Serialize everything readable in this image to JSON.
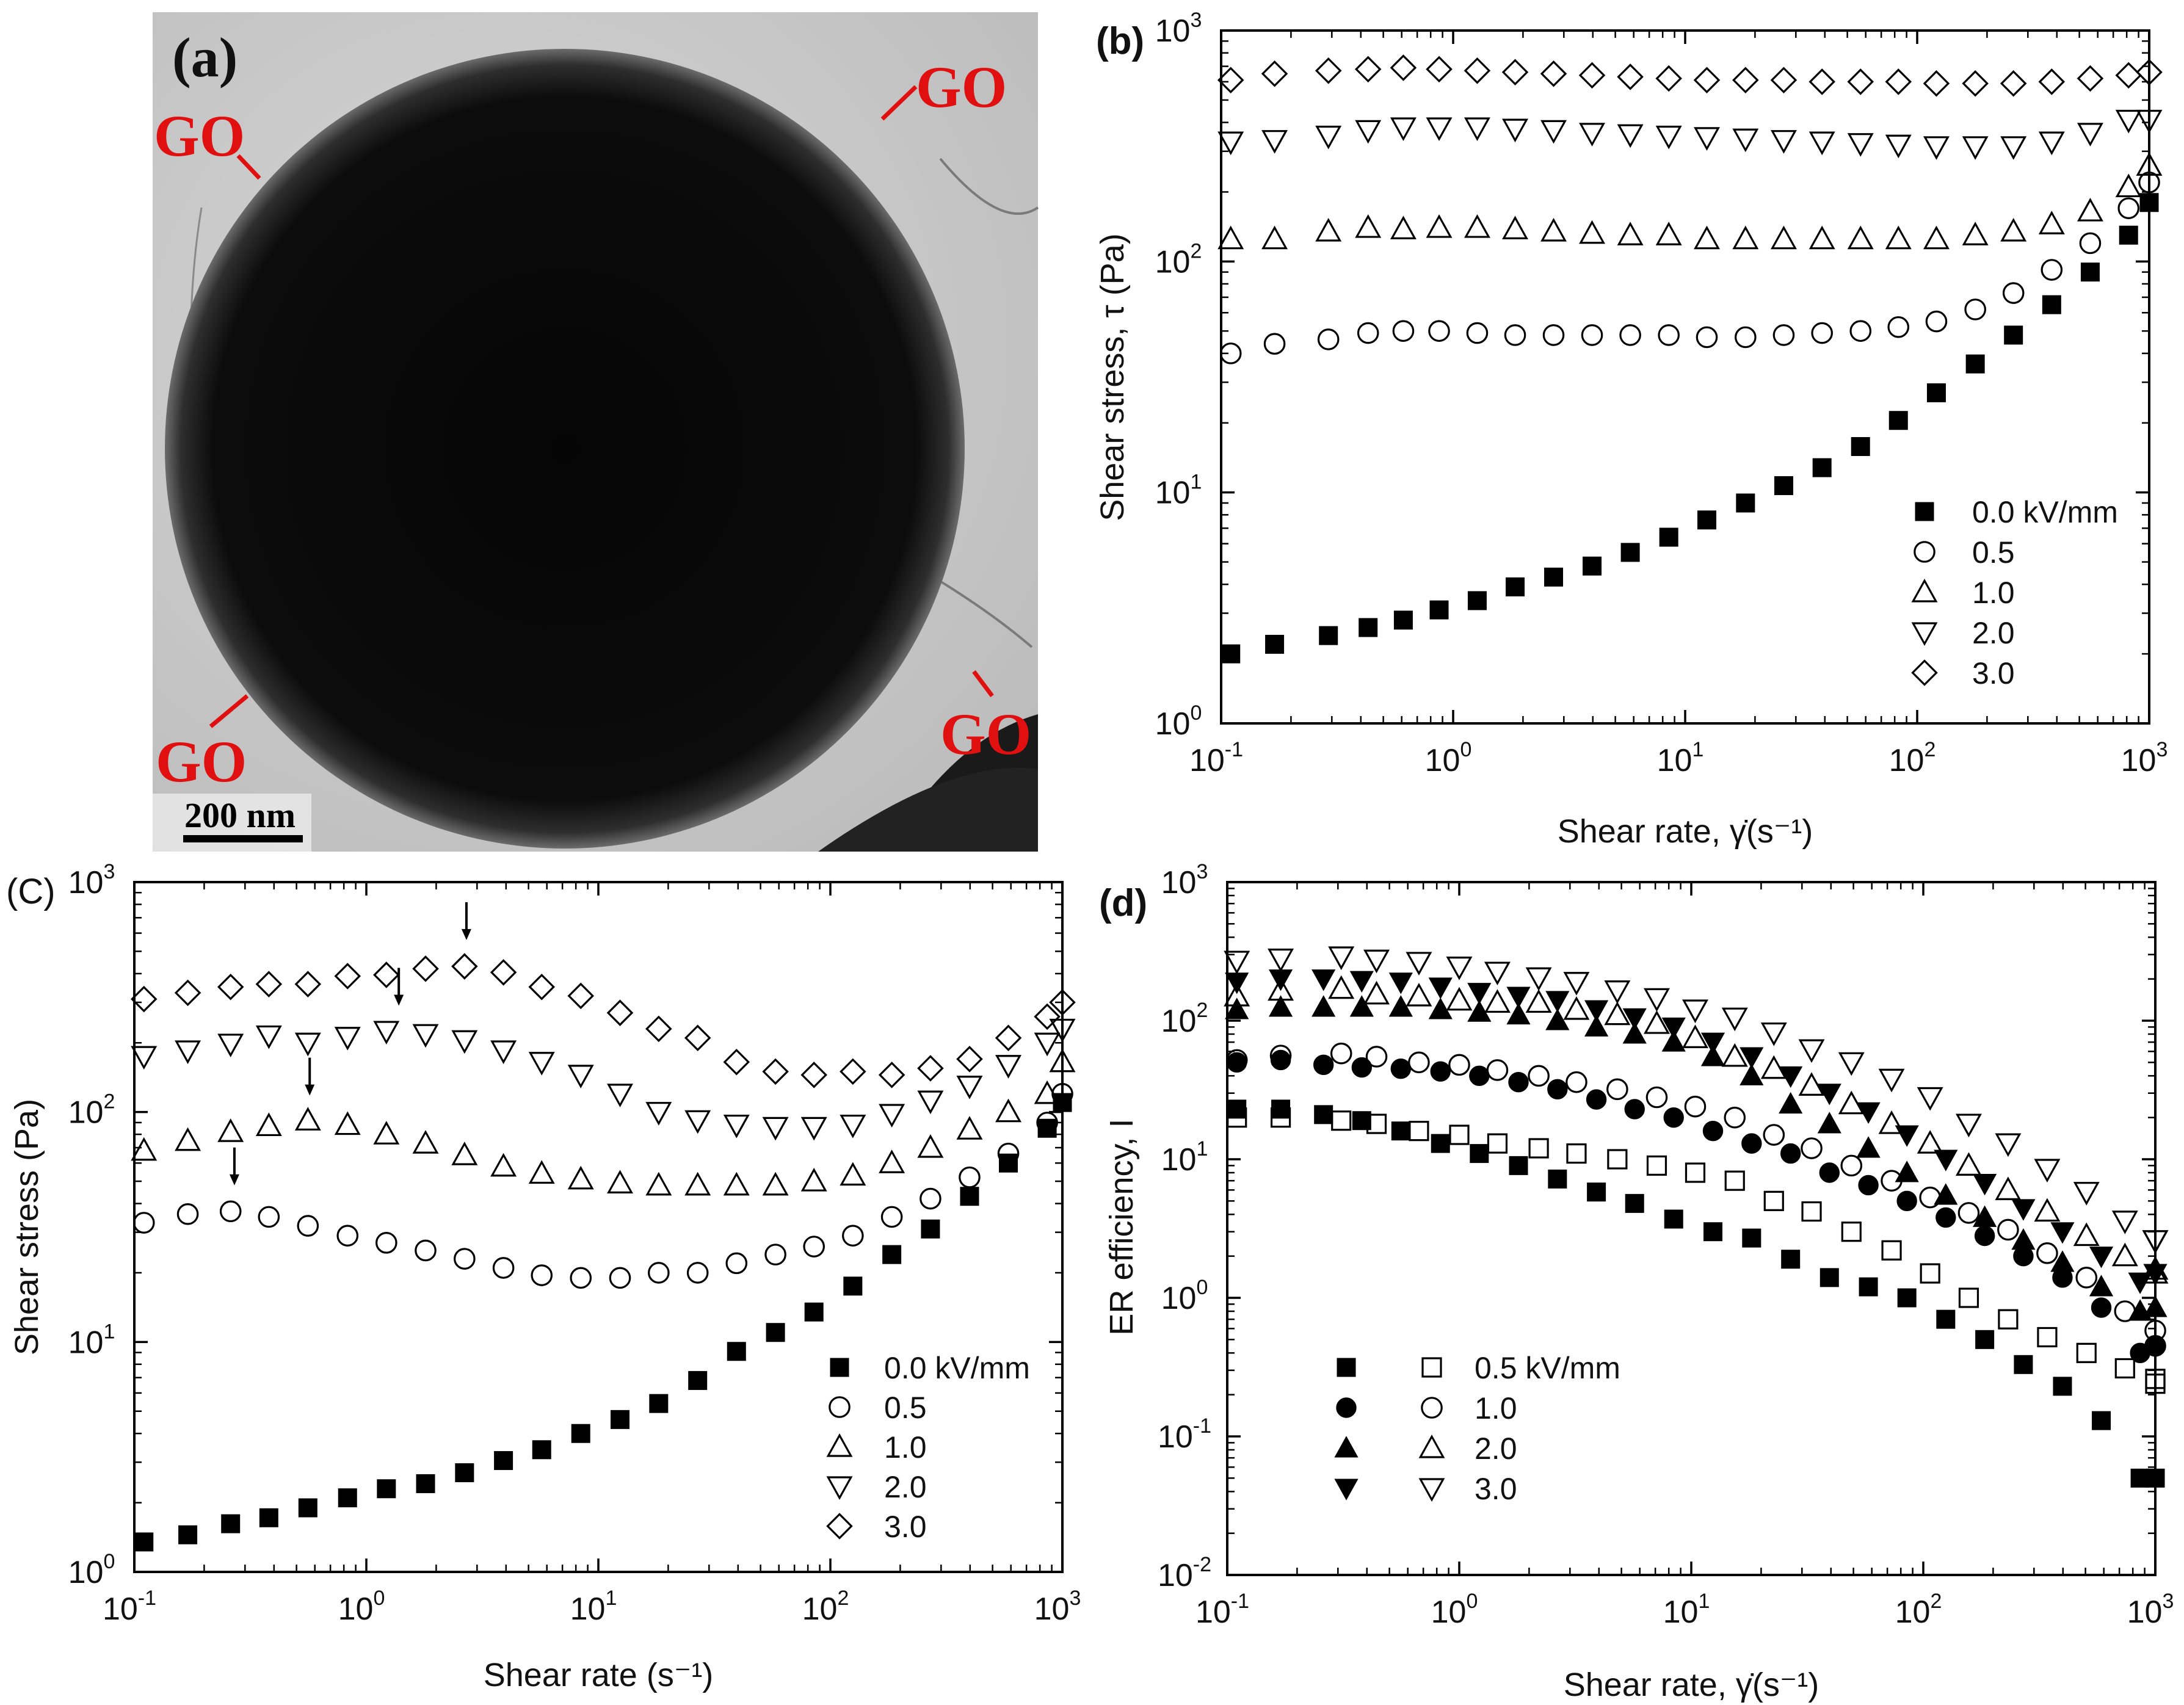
{
  "panel_a": {
    "label": "(a)",
    "annotations": [
      "GO",
      "GO",
      "GO",
      "GO"
    ],
    "scale_bar": "200 nm"
  },
  "chart_data": [
    {
      "id": "b",
      "panel_label": "(b)",
      "type": "scatter",
      "xscale": "log",
      "yscale": "log",
      "xlim": [
        0.1,
        1000
      ],
      "ylim": [
        1,
        1000
      ],
      "xlabel": "Shear rate, γ̇(s⁻¹)",
      "ylabel": "Shear stress, τ (Pa)",
      "xticks": [
        {
          "b": "10",
          "e": "-1"
        },
        {
          "b": "10",
          "e": "0"
        },
        {
          "b": "10",
          "e": "1"
        },
        {
          "b": "10",
          "e": "2"
        },
        {
          "b": "10",
          "e": "3"
        }
      ],
      "yticks": [
        {
          "b": "10",
          "e": "0"
        },
        {
          "b": "10",
          "e": "1"
        },
        {
          "b": "10",
          "e": "2"
        },
        {
          "b": "10",
          "e": "3"
        }
      ],
      "legend_position": "bottom-right",
      "legend": [
        "0.0 kV/mm",
        "0.5",
        "1.0",
        "2.0",
        "3.0"
      ],
      "x": [
        0.11,
        0.17,
        0.29,
        0.43,
        0.61,
        0.87,
        1.27,
        1.85,
        2.71,
        3.97,
        5.8,
        8.5,
        12.4,
        18.2,
        26.6,
        38.9,
        57,
        83,
        121,
        178,
        260,
        380,
        557,
        815,
        1000
      ],
      "series": [
        {
          "name": "0.0 kV/mm",
          "marker": "square-filled",
          "values": [
            2.0,
            2.2,
            2.4,
            2.6,
            2.8,
            3.1,
            3.4,
            3.9,
            4.3,
            4.8,
            5.5,
            6.4,
            7.6,
            9.0,
            10.7,
            12.8,
            15.8,
            20.5,
            27,
            36,
            48,
            65,
            90,
            130,
            180
          ]
        },
        {
          "name": "0.5",
          "marker": "circle-open",
          "values": [
            40,
            44,
            46,
            49,
            50,
            50,
            49,
            48,
            48,
            48,
            48,
            48,
            47,
            47,
            48,
            49,
            50,
            52,
            55,
            62,
            73,
            92,
            120,
            170,
            220
          ]
        },
        {
          "name": "1.0",
          "marker": "triangle-up-open",
          "values": [
            125,
            125,
            135,
            140,
            138,
            140,
            140,
            138,
            135,
            132,
            130,
            130,
            125,
            125,
            125,
            125,
            125,
            125,
            125,
            130,
            135,
            145,
            165,
            210,
            260
          ]
        },
        {
          "name": "2.0",
          "marker": "triangle-down-open",
          "values": [
            330,
            335,
            350,
            370,
            380,
            380,
            380,
            375,
            370,
            360,
            355,
            350,
            345,
            340,
            335,
            330,
            325,
            320,
            315,
            315,
            315,
            330,
            360,
            410,
            410
          ]
        },
        {
          "name": "3.0",
          "marker": "diamond-open",
          "values": [
            610,
            650,
            670,
            680,
            690,
            680,
            670,
            660,
            650,
            640,
            630,
            620,
            610,
            610,
            610,
            600,
            600,
            600,
            590,
            590,
            590,
            600,
            620,
            640,
            660
          ]
        }
      ]
    },
    {
      "id": "c",
      "panel_label": "(C)",
      "type": "scatter",
      "xscale": "log",
      "yscale": "log",
      "xlim": [
        0.1,
        1000
      ],
      "ylim": [
        1,
        1000
      ],
      "xlabel": "Shear rate (s⁻¹)",
      "ylabel": "Shear stress (Pa)",
      "xticks": [
        {
          "b": "10",
          "e": "-1"
        },
        {
          "b": "10",
          "e": "0"
        },
        {
          "b": "10",
          "e": "1"
        },
        {
          "b": "10",
          "e": "2"
        },
        {
          "b": "10",
          "e": "3"
        }
      ],
      "yticks": [
        {
          "b": "10",
          "e": "0"
        },
        {
          "b": "10",
          "e": "1"
        },
        {
          "b": "10",
          "e": "2"
        },
        {
          "b": "10",
          "e": "3"
        }
      ],
      "legend_position": "bottom-right",
      "legend": [
        "0.0 kV/mm",
        "0.5",
        "1.0",
        "2.0",
        "3.0"
      ],
      "x": [
        0.11,
        0.17,
        0.26,
        0.38,
        0.56,
        0.83,
        1.22,
        1.8,
        2.65,
        3.9,
        5.7,
        8.4,
        12.4,
        18.2,
        26.8,
        39.4,
        58,
        85,
        125,
        184,
        270,
        398,
        585,
        860,
        1000
      ],
      "series": [
        {
          "name": "0.0 kV/mm",
          "marker": "square-filled",
          "values": [
            1.35,
            1.45,
            1.62,
            1.72,
            1.9,
            2.1,
            2.3,
            2.42,
            2.7,
            3.05,
            3.4,
            4.0,
            4.6,
            5.4,
            6.8,
            9.1,
            11,
            13.5,
            17.5,
            24,
            31,
            43,
            60,
            85,
            110
          ]
        },
        {
          "name": "0.5",
          "marker": "circle-open",
          "values": [
            33,
            36,
            37,
            35,
            32,
            29,
            27,
            25,
            23,
            21,
            19.5,
            19,
            19,
            20,
            20,
            22,
            24,
            26,
            29,
            35,
            42,
            52,
            66,
            90,
            120
          ]
        },
        {
          "name": "1.0",
          "marker": "triangle-up-open",
          "values": [
            68,
            75,
            82,
            87,
            92,
            88,
            80,
            73,
            65,
            58,
            54,
            51,
            49,
            48,
            48,
            48,
            48,
            50,
            53,
            60,
            70,
            84,
            100,
            120,
            165
          ]
        },
        {
          "name": "2.0",
          "marker": "triangle-down-open",
          "values": [
            175,
            185,
            198,
            215,
            200,
            212,
            225,
            218,
            205,
            185,
            165,
            145,
            120,
            100,
            92,
            88,
            86,
            86,
            88,
            98,
            112,
            130,
            160,
            200,
            230
          ]
        },
        {
          "name": "3.0",
          "marker": "diamond-open",
          "values": [
            310,
            330,
            350,
            360,
            360,
            390,
            395,
            420,
            430,
            405,
            350,
            320,
            270,
            230,
            210,
            165,
            150,
            145,
            150,
            145,
            155,
            170,
            210,
            260,
            300
          ]
        }
      ],
      "arrows_at_x": [
        0.27,
        0.57,
        1.38,
        2.7
      ],
      "arrows_at_y": [
        48,
        118,
        290,
        560
      ]
    },
    {
      "id": "d",
      "panel_label": "(d)",
      "type": "scatter",
      "xscale": "log",
      "yscale": "log",
      "xlim": [
        0.1,
        1000
      ],
      "ylim": [
        0.01,
        1000
      ],
      "xlabel": "Shear rate, γ̇(s⁻¹)",
      "ylabel": "ER efficiency, I",
      "xticks": [
        {
          "b": "10",
          "e": "-1"
        },
        {
          "b": "10",
          "e": "0"
        },
        {
          "b": "10",
          "e": "1"
        },
        {
          "b": "10",
          "e": "2"
        },
        {
          "b": "10",
          "e": "3"
        }
      ],
      "yticks": [
        {
          "b": "10",
          "e": "-2"
        },
        {
          "b": "10",
          "e": "-1"
        },
        {
          "b": "10",
          "e": "0"
        },
        {
          "b": "10",
          "e": "1"
        },
        {
          "b": "10",
          "e": "2"
        },
        {
          "b": "10",
          "e": "3"
        }
      ],
      "legend_position": "bottom-left",
      "legend": [
        "0.5 kV/mm",
        "1.0",
        "2.0",
        "3.0"
      ],
      "x_filled": [
        0.11,
        0.17,
        0.26,
        0.38,
        0.56,
        0.83,
        1.22,
        1.8,
        2.65,
        3.9,
        5.7,
        8.4,
        12.4,
        18.2,
        26.8,
        39.4,
        58,
        85,
        125,
        184,
        270,
        398,
        585,
        860,
        1000
      ],
      "x_open": [
        0.11,
        0.17,
        0.31,
        0.44,
        0.67,
        1.0,
        1.46,
        2.2,
        3.2,
        4.8,
        7.1,
        10.4,
        15.4,
        22.7,
        33,
        49,
        73,
        107,
        157,
        232,
        342,
        505,
        740,
        1000,
        1000
      ],
      "series": [
        {
          "name": "0.5 kV/mm",
          "marker": "square-filled",
          "values": [
            23,
            23,
            21,
            19,
            16,
            13,
            11,
            9,
            7.2,
            5.8,
            4.8,
            3.7,
            3.0,
            2.7,
            1.9,
            1.4,
            1.2,
            1.0,
            0.7,
            0.5,
            0.33,
            0.23,
            0.13,
            0.05,
            0.05
          ]
        },
        {
          "name": "0.5 kV/mm (open)",
          "marker": "square-open",
          "values": [
            20,
            20,
            19,
            18,
            16,
            15,
            13,
            12,
            11,
            10,
            9,
            8,
            7,
            5,
            4.2,
            3.0,
            2.2,
            1.5,
            1.0,
            0.7,
            0.52,
            0.4,
            0.31,
            0.26,
            0.24
          ]
        },
        {
          "name": "1.0",
          "marker": "circle-filled",
          "values": [
            50,
            52,
            48,
            46,
            45,
            43,
            40,
            36,
            32,
            27,
            23,
            20,
            16,
            13,
            11,
            8,
            6.5,
            5,
            3.8,
            2.8,
            2.0,
            1.4,
            0.85,
            0.4,
            0.45
          ]
        },
        {
          "name": "1.0 (open)",
          "marker": "circle-open",
          "values": [
            52,
            56,
            58,
            55,
            50,
            48,
            44,
            40,
            36,
            32,
            28,
            24,
            20,
            15,
            12,
            9,
            7,
            5.3,
            4.1,
            3.1,
            2.1,
            1.4,
            0.8,
            0.58,
            0.45
          ]
        },
        {
          "name": "2.0",
          "marker": "triangle-up-filled",
          "values": [
            120,
            125,
            125,
            125,
            125,
            120,
            115,
            110,
            100,
            90,
            80,
            70,
            55,
            40,
            25,
            18,
            12,
            8,
            5.5,
            3.8,
            2.6,
            1.8,
            1.2,
            0.8,
            0.85
          ]
        },
        {
          "name": "2.0 (open)",
          "marker": "triangle-up-open",
          "values": [
            150,
            165,
            170,
            155,
            150,
            140,
            135,
            135,
            120,
            110,
            95,
            75,
            55,
            45,
            34,
            25,
            18,
            13,
            9,
            6,
            4.2,
            2.8,
            2.0,
            1.6,
            1.5
          ]
        },
        {
          "name": "3.0",
          "marker": "triangle-down-filled",
          "values": [
            190,
            200,
            200,
            195,
            190,
            175,
            160,
            150,
            140,
            120,
            105,
            90,
            70,
            55,
            40,
            30,
            22,
            15,
            10,
            6.7,
            4.4,
            3.0,
            2.0,
            1.3,
            1.5
          ]
        },
        {
          "name": "3.0 (open)",
          "marker": "triangle-down-open",
          "values": [
            270,
            280,
            290,
            275,
            265,
            245,
            225,
            205,
            190,
            165,
            145,
            120,
            105,
            82,
            62,
            50,
            38,
            28,
            18,
            13,
            8.5,
            5.8,
            3.6,
            2.6,
            2.6
          ]
        }
      ]
    }
  ]
}
